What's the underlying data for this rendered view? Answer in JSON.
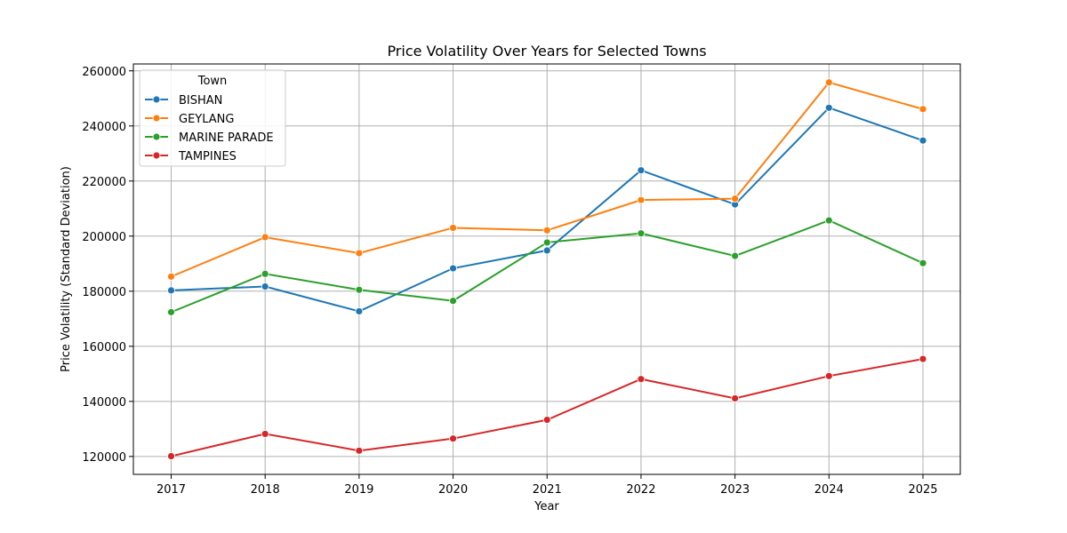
{
  "chart_data": {
    "type": "line",
    "title": "Price Volatility Over Years for Selected Towns",
    "xlabel": "Year",
    "ylabel": "Price Volatility (Standard Deviation)",
    "x": [
      "2017",
      "2018",
      "2019",
      "2020",
      "2021",
      "2022",
      "2023",
      "2024",
      "2025"
    ],
    "ylim": [
      113500,
      262500
    ],
    "yticks": [
      120000,
      140000,
      160000,
      180000,
      200000,
      220000,
      240000,
      260000
    ],
    "grid": true,
    "legend": {
      "title": "Town",
      "placement": "top-left"
    },
    "series": [
      {
        "name": "BISHAN",
        "color": "#1f77b4",
        "values": [
          180300,
          181700,
          172700,
          188300,
          194800,
          223900,
          211500,
          246600,
          234700
        ]
      },
      {
        "name": "GEYLANG",
        "color": "#ff7f0e",
        "values": [
          185300,
          199600,
          193800,
          203000,
          202100,
          213100,
          213600,
          255800,
          246100
        ]
      },
      {
        "name": "MARINE PARADE",
        "color": "#2ca02c",
        "values": [
          172400,
          186300,
          180500,
          176500,
          197700,
          201000,
          192800,
          205700,
          190200
        ]
      },
      {
        "name": "TAMPINES",
        "color": "#d62728",
        "values": [
          120100,
          128200,
          122100,
          126500,
          133300,
          148100,
          141100,
          149200,
          155400
        ]
      }
    ]
  }
}
